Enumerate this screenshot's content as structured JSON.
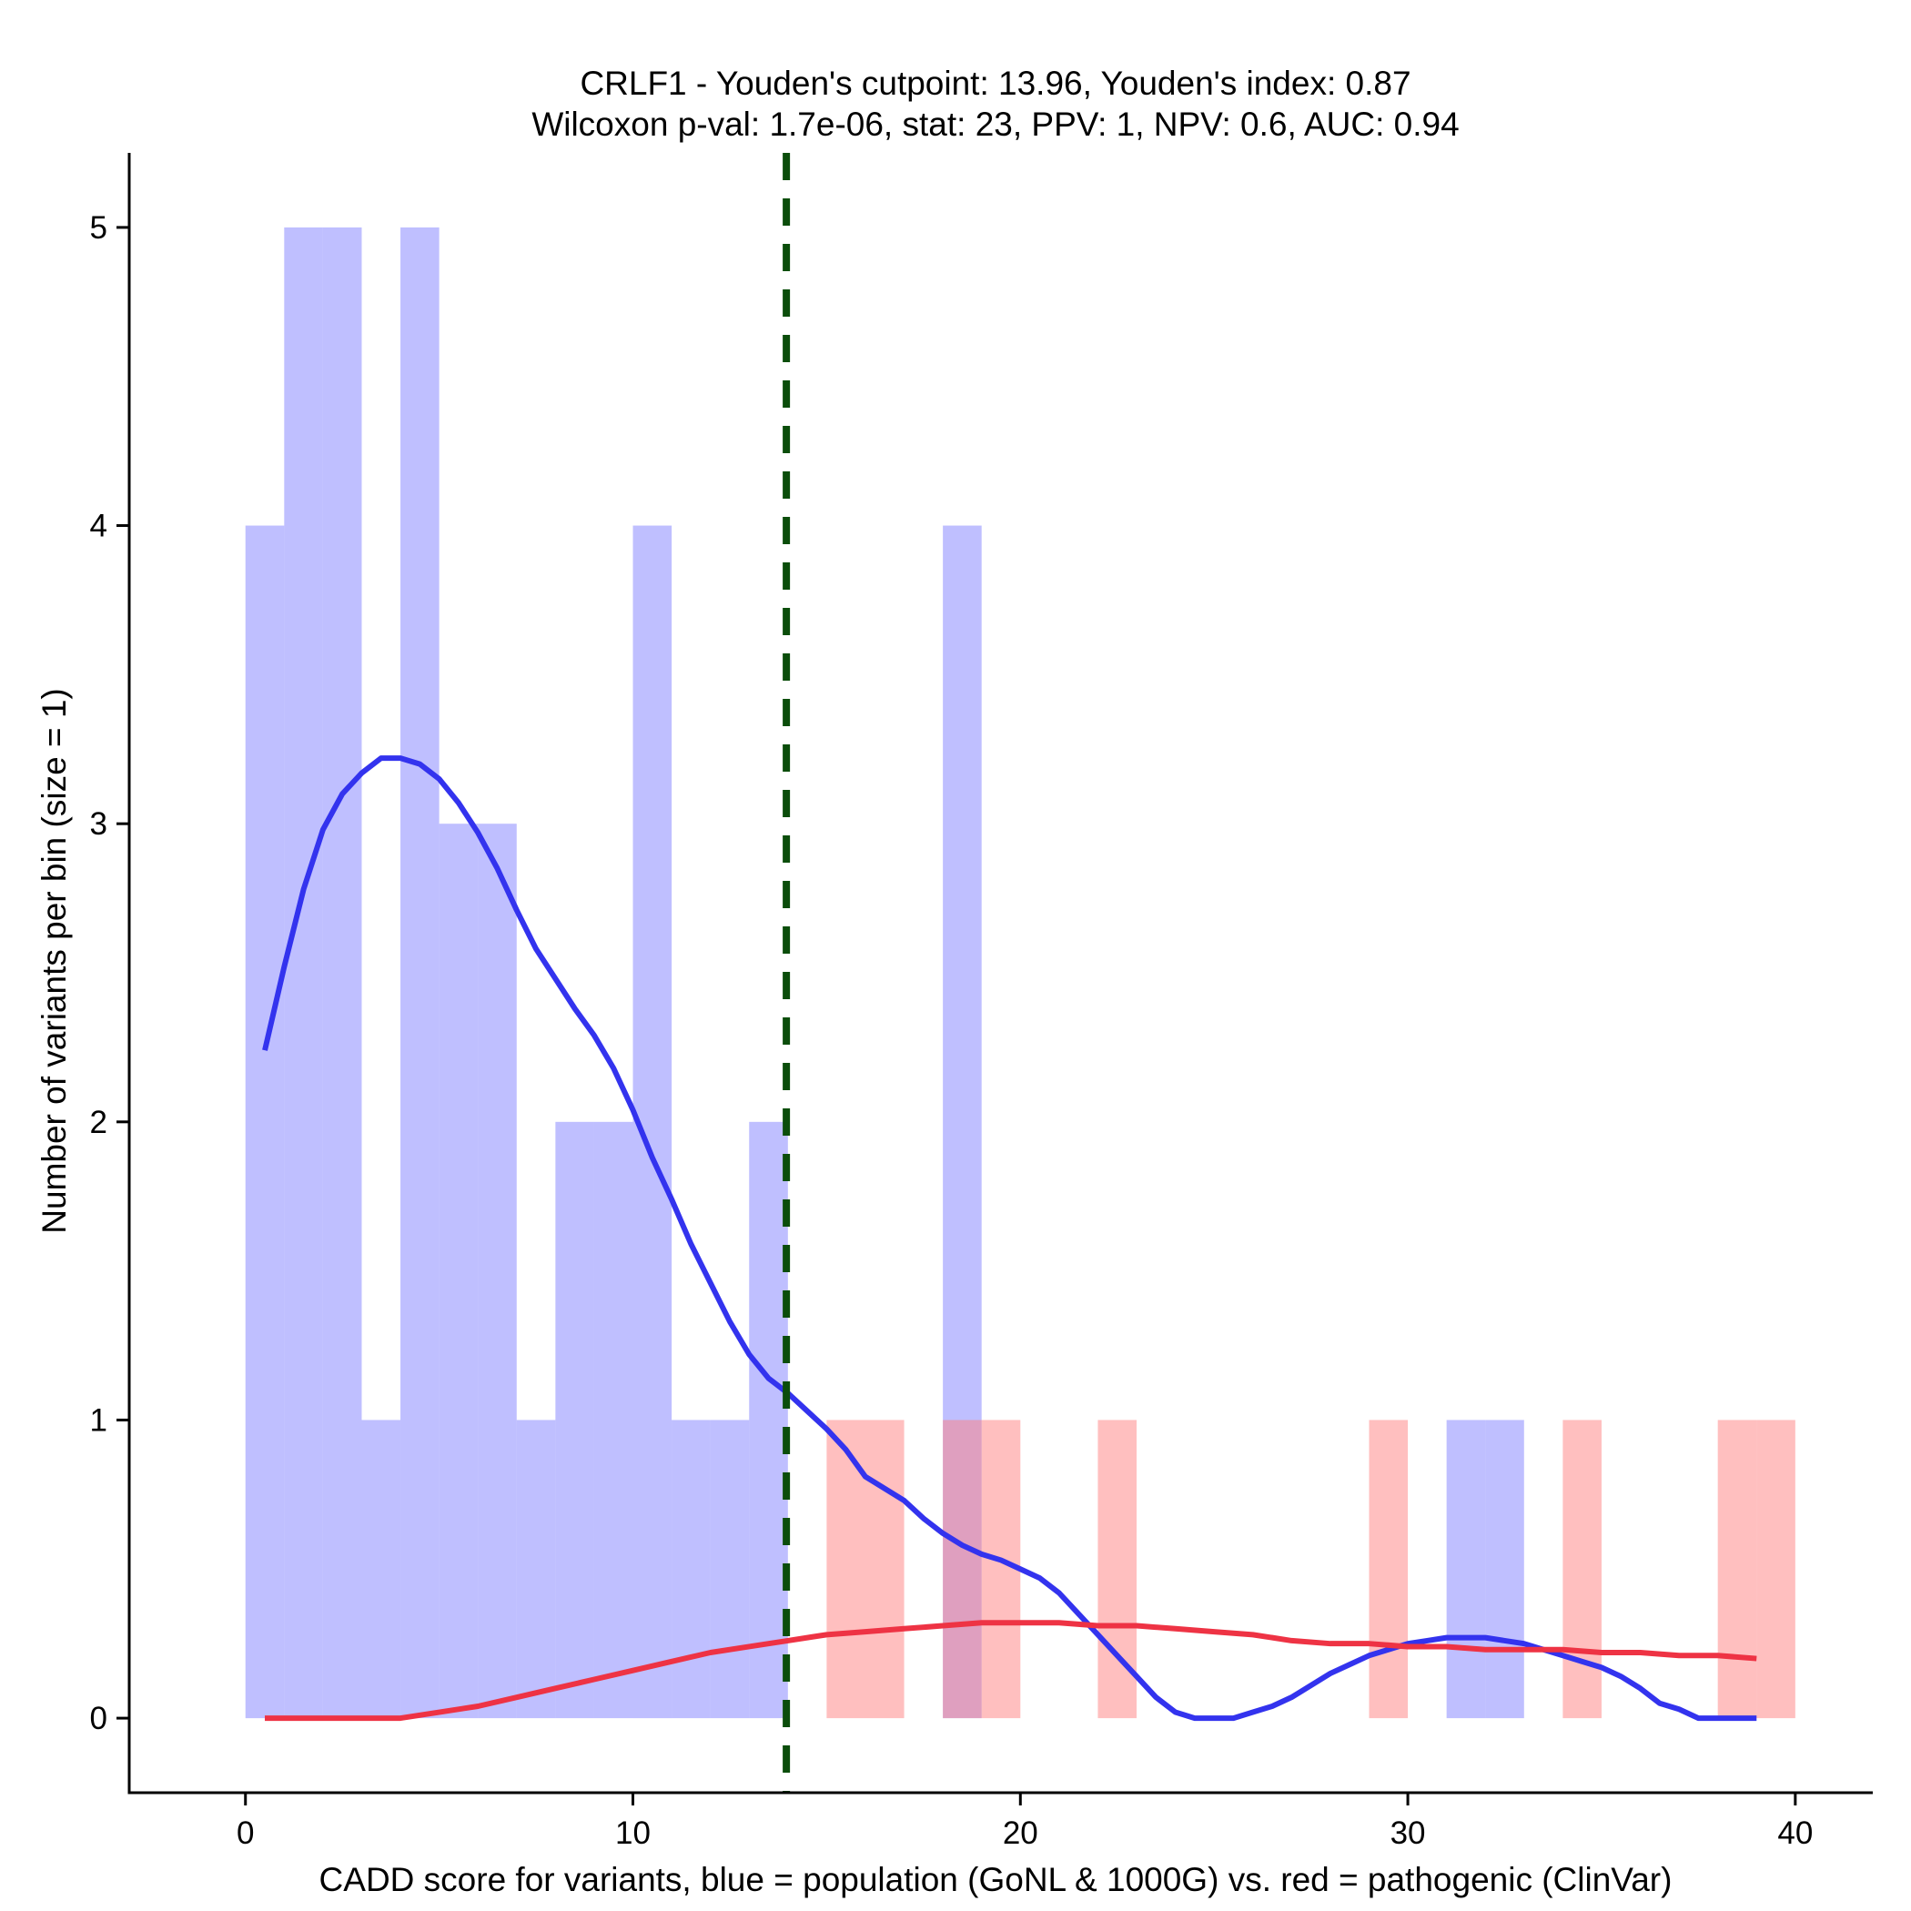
{
  "chart_data": {
    "type": "bar",
    "title": "CRLF1 - Youden's cutpoint: 13.96, Youden's index: 0.87",
    "subtitle": "Wilcoxon p-val: 1.7e-06, stat: 23, PPV: 1, NPV: 0.6, AUC: 0.94",
    "xlabel": "CADD score for variants, blue = population (GoNL & 1000G) vs. red = pathogenic (ClinVar)",
    "ylabel": "Number of variants per bin (size = 1)",
    "xlim": [
      -3,
      42
    ],
    "ylim": [
      -0.25,
      5.25
    ],
    "xticks": [
      0,
      10,
      20,
      30,
      40
    ],
    "xtick_labels": [
      "0",
      "10",
      "20",
      "30",
      "40"
    ],
    "yticks": [
      0,
      1,
      2,
      3,
      4,
      5
    ],
    "ytick_labels": [
      "0",
      "1",
      "2",
      "3",
      "4",
      "5"
    ],
    "bin_width": 1,
    "cutpoint": 13.96,
    "series": [
      {
        "name": "population (GoNL & 1000G)",
        "color": "#8080ff",
        "opacity": 0.5,
        "bins": [
          {
            "start": 0,
            "count": 4
          },
          {
            "start": 1,
            "count": 5
          },
          {
            "start": 2,
            "count": 5
          },
          {
            "start": 3,
            "count": 1
          },
          {
            "start": 4,
            "count": 5
          },
          {
            "start": 5,
            "count": 3
          },
          {
            "start": 6,
            "count": 3
          },
          {
            "start": 7,
            "count": 1
          },
          {
            "start": 8,
            "count": 2
          },
          {
            "start": 9,
            "count": 2
          },
          {
            "start": 10,
            "count": 4
          },
          {
            "start": 11,
            "count": 1
          },
          {
            "start": 12,
            "count": 1
          },
          {
            "start": 13,
            "count": 2
          },
          {
            "start": 18,
            "count": 4
          },
          {
            "start": 31,
            "count": 1
          },
          {
            "start": 32,
            "count": 1
          }
        ]
      },
      {
        "name": "pathogenic (ClinVar)",
        "color": "#ff8080",
        "opacity": 0.5,
        "bins": [
          {
            "start": 15,
            "count": 1
          },
          {
            "start": 16,
            "count": 1
          },
          {
            "start": 18,
            "count": 1
          },
          {
            "start": 19,
            "count": 1
          },
          {
            "start": 22,
            "count": 1
          },
          {
            "start": 29,
            "count": 1
          },
          {
            "start": 34,
            "count": 1
          },
          {
            "start": 38,
            "count": 1
          },
          {
            "start": 39,
            "count": 1
          }
        ]
      }
    ],
    "density_lines": [
      {
        "name": "population density",
        "color": "#3333ee",
        "points": [
          [
            0.5,
            2.24
          ],
          [
            1,
            2.52
          ],
          [
            1.5,
            2.78
          ],
          [
            2,
            2.98
          ],
          [
            2.5,
            3.1
          ],
          [
            3,
            3.17
          ],
          [
            3.5,
            3.22
          ],
          [
            4,
            3.22
          ],
          [
            4.5,
            3.2
          ],
          [
            5,
            3.15
          ],
          [
            5.5,
            3.07
          ],
          [
            6,
            2.97
          ],
          [
            6.5,
            2.85
          ],
          [
            7,
            2.71
          ],
          [
            7.5,
            2.58
          ],
          [
            8,
            2.48
          ],
          [
            8.5,
            2.38
          ],
          [
            9,
            2.29
          ],
          [
            9.5,
            2.18
          ],
          [
            10,
            2.04
          ],
          [
            10.5,
            1.88
          ],
          [
            11,
            1.74
          ],
          [
            11.5,
            1.59
          ],
          [
            12,
            1.46
          ],
          [
            12.5,
            1.33
          ],
          [
            13,
            1.22
          ],
          [
            13.5,
            1.14
          ],
          [
            14,
            1.09
          ],
          [
            14.5,
            1.03
          ],
          [
            15,
            0.97
          ],
          [
            15.5,
            0.9
          ],
          [
            16,
            0.81
          ],
          [
            16.5,
            0.77
          ],
          [
            17,
            0.73
          ],
          [
            17.5,
            0.67
          ],
          [
            18,
            0.62
          ],
          [
            18.5,
            0.58
          ],
          [
            19,
            0.55
          ],
          [
            19.5,
            0.53
          ],
          [
            20,
            0.5
          ],
          [
            20.5,
            0.47
          ],
          [
            21,
            0.42
          ],
          [
            21.5,
            0.35
          ],
          [
            22,
            0.28
          ],
          [
            22.5,
            0.21
          ],
          [
            23,
            0.14
          ],
          [
            23.5,
            0.07
          ],
          [
            24,
            0.02
          ],
          [
            24.5,
            0.0
          ],
          [
            25,
            0.0
          ],
          [
            25.5,
            0.0
          ],
          [
            26,
            0.02
          ],
          [
            26.5,
            0.04
          ],
          [
            27,
            0.07
          ],
          [
            27.5,
            0.11
          ],
          [
            28,
            0.15
          ],
          [
            28.5,
            0.18
          ],
          [
            29,
            0.21
          ],
          [
            29.5,
            0.23
          ],
          [
            30,
            0.25
          ],
          [
            30.5,
            0.26
          ],
          [
            31,
            0.27
          ],
          [
            31.5,
            0.27
          ],
          [
            32,
            0.27
          ],
          [
            32.5,
            0.26
          ],
          [
            33,
            0.25
          ],
          [
            33.5,
            0.23
          ],
          [
            34,
            0.21
          ],
          [
            34.5,
            0.19
          ],
          [
            35,
            0.17
          ],
          [
            35.5,
            0.14
          ],
          [
            36,
            0.1
          ],
          [
            36.5,
            0.05
          ],
          [
            37,
            0.03
          ],
          [
            37.5,
            0.0
          ],
          [
            38,
            0.0
          ],
          [
            38.5,
            0.0
          ],
          [
            39,
            0.0
          ]
        ]
      },
      {
        "name": "pathogenic density",
        "color": "#ee3344",
        "points": [
          [
            0.5,
            0.0
          ],
          [
            1,
            0.0
          ],
          [
            2,
            0.0
          ],
          [
            3,
            0.0
          ],
          [
            3.8,
            0.0
          ],
          [
            4,
            0.0
          ],
          [
            5,
            0.02
          ],
          [
            6,
            0.04
          ],
          [
            7,
            0.07
          ],
          [
            8,
            0.1
          ],
          [
            9,
            0.13
          ],
          [
            10,
            0.16
          ],
          [
            11,
            0.19
          ],
          [
            12,
            0.22
          ],
          [
            13,
            0.24
          ],
          [
            14,
            0.26
          ],
          [
            15,
            0.28
          ],
          [
            16,
            0.29
          ],
          [
            17,
            0.3
          ],
          [
            18,
            0.31
          ],
          [
            19,
            0.32
          ],
          [
            20,
            0.32
          ],
          [
            21,
            0.32
          ],
          [
            22,
            0.31
          ],
          [
            23,
            0.31
          ],
          [
            24,
            0.3
          ],
          [
            25,
            0.29
          ],
          [
            26,
            0.28
          ],
          [
            27,
            0.26
          ],
          [
            28,
            0.25
          ],
          [
            29,
            0.25
          ],
          [
            30,
            0.24
          ],
          [
            31,
            0.24
          ],
          [
            32,
            0.23
          ],
          [
            33,
            0.23
          ],
          [
            34,
            0.23
          ],
          [
            35,
            0.22
          ],
          [
            36,
            0.22
          ],
          [
            37,
            0.21
          ],
          [
            38,
            0.21
          ],
          [
            39,
            0.2
          ]
        ]
      }
    ],
    "cutpoint_line": {
      "color": "#0b4d0b",
      "style": "dashed"
    },
    "grid": false,
    "legend": "none"
  }
}
